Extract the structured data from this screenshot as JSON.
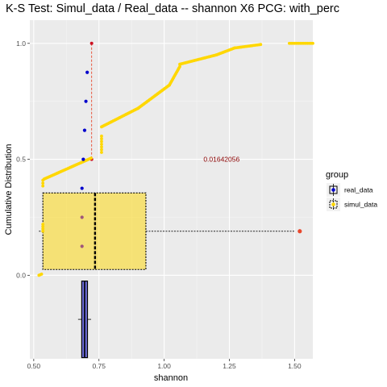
{
  "chart_data": {
    "type": "scatter",
    "title": "K-S Test: Simul_data / Real_data -- shannon X6 PCG: with_perc",
    "xlabel": "shannon",
    "ylabel": "Cumulative Distribution",
    "xlim": [
      0.485,
      1.57
    ],
    "ylim": [
      -0.36,
      1.1
    ],
    "x_ticks": [
      {
        "value": 0.5,
        "label": "0.50"
      },
      {
        "value": 0.75,
        "label": "0.75"
      },
      {
        "value": 1.0,
        "label": "1.00"
      },
      {
        "value": 1.25,
        "label": "1.25"
      },
      {
        "value": 1.5,
        "label": "1.50"
      }
    ],
    "y_ticks": [
      {
        "value": 0.0,
        "label": "0.0"
      },
      {
        "value": 0.5,
        "label": "0.5"
      },
      {
        "value": 1.0,
        "label": "1.0"
      }
    ],
    "grid": true,
    "legend": {
      "title": "group",
      "position": "right",
      "entries": [
        {
          "label": "real_data",
          "color": "#0000cc"
        },
        {
          "label": "simul_data",
          "color": "#ffd700"
        }
      ]
    },
    "series": [
      {
        "name": "real_data",
        "color": "#0000cc",
        "points": [
          {
            "x": 0.705,
            "y": 0.875
          },
          {
            "x": 0.7,
            "y": 0.75
          },
          {
            "x": 0.695,
            "y": 0.625
          },
          {
            "x": 0.69,
            "y": 0.5
          },
          {
            "x": 0.685,
            "y": 0.375
          },
          {
            "x": 0.685,
            "y": 0.25
          },
          {
            "x": 0.685,
            "y": 0.125
          }
        ]
      },
      {
        "name": "simul_data",
        "color": "#ffd700",
        "steps": [
          {
            "x0": 0.52,
            "x1": 0.53,
            "y0": 0.0,
            "y1": 0.005
          },
          {
            "x0": 0.535,
            "x1": 0.535,
            "y0": 0.19,
            "y1": 0.22
          },
          {
            "x0": 0.535,
            "x1": 0.535,
            "y0": 0.385,
            "y1": 0.41
          },
          {
            "x0": 0.54,
            "x1": 0.72,
            "y0": 0.415,
            "y1": 0.505
          },
          {
            "x0": 0.76,
            "x1": 0.76,
            "y0": 0.53,
            "y1": 0.6
          },
          {
            "x0": 0.76,
            "x1": 0.9,
            "y0": 0.64,
            "y1": 0.72
          },
          {
            "x0": 0.9,
            "x1": 1.02,
            "y0": 0.72,
            "y1": 0.82
          },
          {
            "x0": 1.02,
            "x1": 1.06,
            "y0": 0.82,
            "y1": 0.9
          },
          {
            "x0": 1.06,
            "x1": 1.2,
            "y0": 0.91,
            "y1": 0.95
          },
          {
            "x0": 1.2,
            "x1": 1.27,
            "y0": 0.95,
            "y1": 0.98
          },
          {
            "x0": 1.27,
            "x1": 1.37,
            "y0": 0.98,
            "y1": 0.995
          },
          {
            "x0": 1.48,
            "x1": 1.57,
            "y0": 1.0,
            "y1": 1.0
          }
        ]
      }
    ],
    "ks_segment": {
      "x": 0.722,
      "y_from": 0.5,
      "y_to": 1.0,
      "color": "#e8472c"
    },
    "annotation": {
      "text": "0.01642056",
      "x": 1.22,
      "y": 0.49
    },
    "boxplot_simul": {
      "q1": 0.535,
      "median": 0.735,
      "q3": 0.93,
      "whisker_low": 0.52,
      "whisker_high": 1.5,
      "y_center": 0.19,
      "half_height": 0.165,
      "outlier": 1.52
    },
    "boxplot_real": {
      "q1": 0.684,
      "median": 0.695,
      "q3": 0.706,
      "whisker_low": 0.67,
      "whisker_high": 0.72,
      "y_center": -0.19,
      "half_height": 0.165
    }
  }
}
